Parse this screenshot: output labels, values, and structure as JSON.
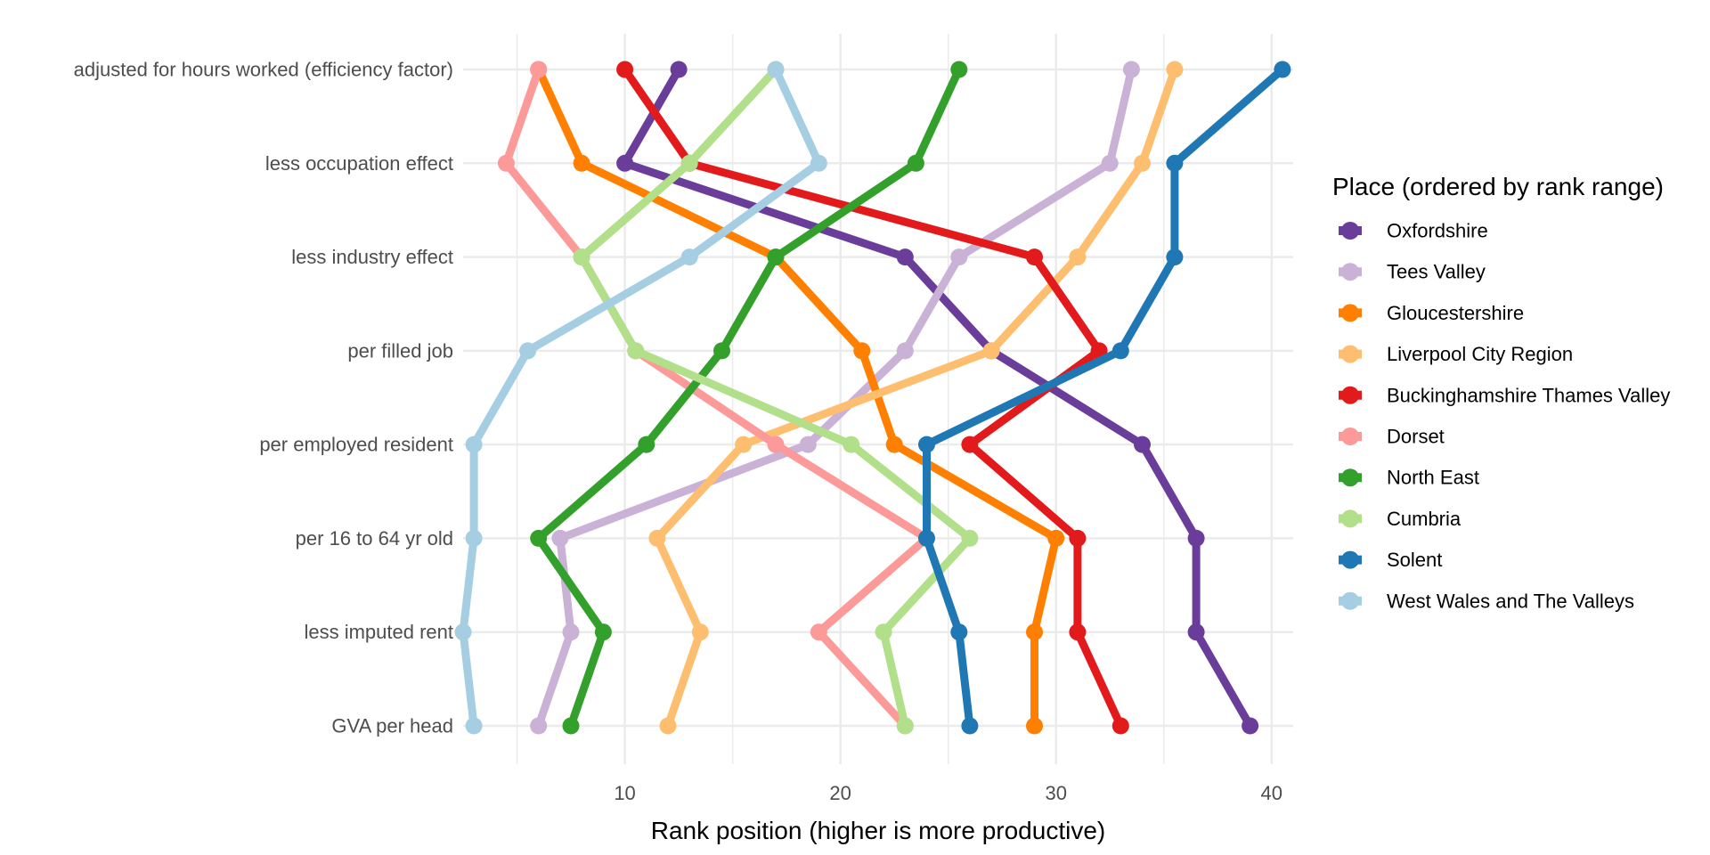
{
  "chart_data": {
    "type": "line",
    "xlabel": "Rank position (higher is more productive)",
    "x_ticks": [
      10,
      20,
      30,
      40
    ],
    "xlim": [
      2.5,
      41.0
    ],
    "categories": [
      "adjusted for hours worked (efficiency factor)",
      "less occupation effect",
      "less industry effect",
      "per filled job",
      "per employed resident",
      "per 16 to 64 yr old",
      "less imputed rent",
      "GVA per head"
    ],
    "legend_title": "Place (ordered by rank range)",
    "legend_position": "right",
    "grid": true,
    "series": [
      {
        "name": "Oxfordshire",
        "color": "#6A3D9A",
        "values": [
          12.5,
          10,
          23,
          27,
          34,
          36.5,
          36.5,
          39
        ]
      },
      {
        "name": "Tees Valley",
        "color": "#CAB2D6",
        "values": [
          33.5,
          32.5,
          25.5,
          23,
          18.5,
          7,
          7.5,
          6
        ]
      },
      {
        "name": "Gloucestershire",
        "color": "#FF7F00",
        "values": [
          6,
          8,
          17,
          21,
          22.5,
          30,
          29,
          29
        ]
      },
      {
        "name": "Liverpool City Region",
        "color": "#FDBF6F",
        "values": [
          35.5,
          34,
          31,
          27,
          15.5,
          11.5,
          13.5,
          12
        ]
      },
      {
        "name": "Buckinghamshire Thames Valley",
        "color": "#E31A1C",
        "values": [
          10,
          13,
          29,
          32,
          26,
          31,
          31,
          33
        ]
      },
      {
        "name": "Dorset",
        "color": "#FB9A99",
        "values": [
          6,
          4.5,
          8,
          10.5,
          17,
          24,
          19,
          23
        ]
      },
      {
        "name": "North East",
        "color": "#33A02C",
        "values": [
          25.5,
          23.5,
          17,
          14.5,
          11,
          6,
          9,
          7.5
        ]
      },
      {
        "name": "Cumbria",
        "color": "#B2DF8A",
        "values": [
          17,
          13,
          8,
          10.5,
          20.5,
          26,
          22,
          23
        ]
      },
      {
        "name": "Solent",
        "color": "#1F78B4",
        "values": [
          40.5,
          35.5,
          35.5,
          33,
          24,
          24,
          25.5,
          26
        ]
      },
      {
        "name": "West Wales and The Valleys",
        "color": "#A6CEE3",
        "values": [
          17,
          19,
          13,
          5.5,
          3,
          3,
          2.5,
          3
        ]
      }
    ]
  }
}
